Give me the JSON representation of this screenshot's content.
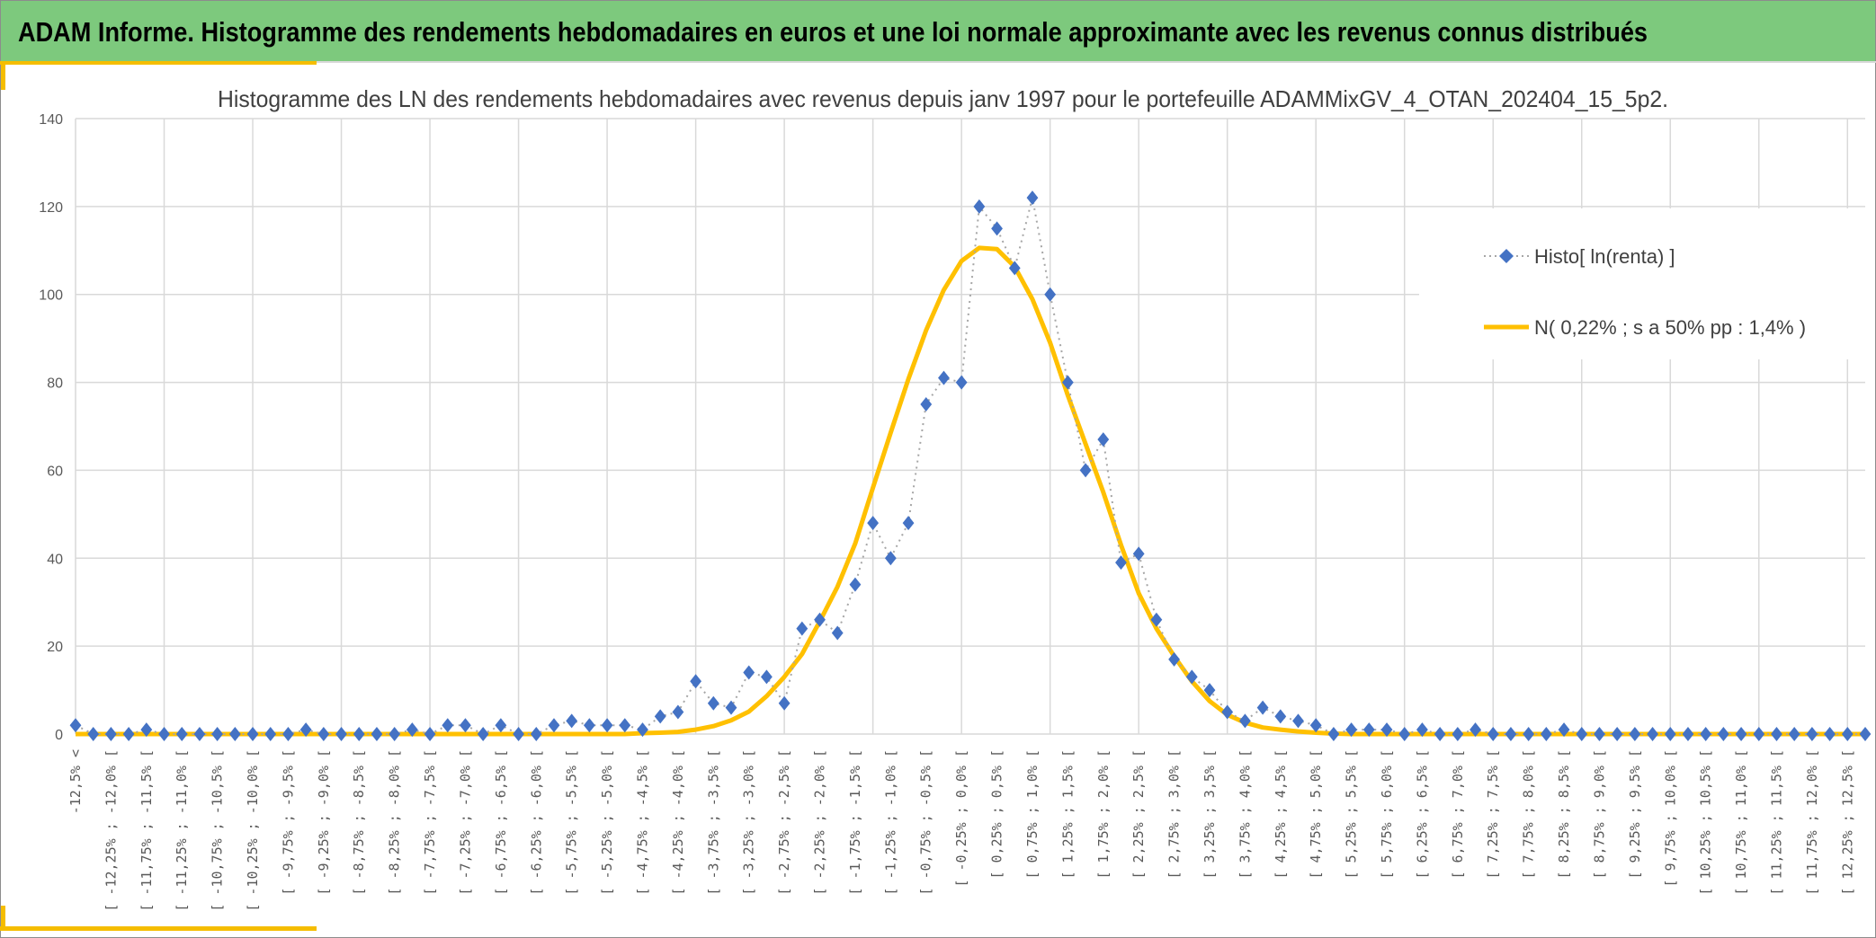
{
  "header": {
    "title": "ADAM Informe. Histogramme des rendements hebdomadaires en euros et une loi normale approximante avec les revenus connus distribués"
  },
  "colors": {
    "header_bg": "#7dc97d",
    "accent": "#f5bd00",
    "histo": "#4472c4",
    "normal": "#ffc000",
    "grid": "#d9d9d9"
  },
  "chart_data": {
    "type": "line",
    "title": "Histogramme des LN des rendements hebdomadaires avec revenus depuis janv 1997 pour le portefeuille ADAMMixGV_4_OTAN_202404_15_5p2.",
    "xlabel": "",
    "ylabel": "",
    "ylim": [
      0,
      140
    ],
    "y_ticks": [
      "0",
      "20",
      "40",
      "60",
      "80",
      "100",
      "120",
      "140"
    ],
    "grid": true,
    "legend_position": "right",
    "bin_width_pct": 0.25,
    "tick_labels_every": 2,
    "tick_labels": [
      "-12,5% <",
      "[ -12,25% ; -12,0% [",
      "[ -11,75% ; -11,5% [",
      "[ -11,25% ; -11,0% [",
      "[ -10,75% ; -10,5% [",
      "[ -10,25% ; -10,0% [",
      "[ -9,75% ; -9,5% [",
      "[ -9,25% ; -9,0% [",
      "[ -8,75% ; -8,5% [",
      "[ -8,25% ; -8,0% [",
      "[ -7,75% ; -7,5% [",
      "[ -7,25% ; -7,0% [",
      "[ -6,75% ; -6,5% [",
      "[ -6,25% ; -6,0% [",
      "[ -5,75% ; -5,5% [",
      "[ -5,25% ; -5,0% [",
      "[ -4,75% ; -4,5% [",
      "[ -4,25% ; -4,0% [",
      "[ -3,75% ; -3,5% [",
      "[ -3,25% ; -3,0% [",
      "[ -2,75% ; -2,5% [",
      "[ -2,25% ; -2,0% [",
      "[ -1,75% ; -1,5% [",
      "[ -1,25% ; -1,0% [",
      "[ -0,75% ; -0,5% [",
      "[ -0,25% ; 0,0% [",
      "[ 0,25% ; 0,5% [",
      "[ 0,75% ; 1,0% [",
      "[ 1,25% ; 1,5% [",
      "[ 1,75% ; 2,0% [",
      "[ 2,25% ; 2,5% [",
      "[ 2,75% ; 3,0% [",
      "[ 3,25% ; 3,5% [",
      "[ 3,75% ; 4,0% [",
      "[ 4,25% ; 4,5% [",
      "[ 4,75% ; 5,0% [",
      "[ 5,25% ; 5,5% [",
      "[ 5,75% ; 6,0% [",
      "[ 6,25% ; 6,5% [",
      "[ 6,75% ; 7,0% [",
      "[ 7,25% ; 7,5% [",
      "[ 7,75% ; 8,0% [",
      "[ 8,25% ; 8,5% [",
      "[ 8,75% ; 9,0% [",
      "[ 9,25% ; 9,5% [",
      "[ 9,75% ; 10,0% [",
      "[ 10,25% ; 10,5% [",
      "[ 10,75% ; 11,0% [",
      "[ 11,25% ; 11,5% [",
      "[ 11,75% ; 12,0% [",
      "[ 12,25% ; 12,5% ["
    ],
    "series": [
      {
        "name": "Histo[ ln(renta) ]",
        "style": "dotted-diamond",
        "values": [
          2,
          0,
          0,
          0,
          1,
          0,
          0,
          0,
          0,
          0,
          0,
          0,
          0,
          1,
          0,
          0,
          0,
          0,
          0,
          1,
          0,
          2,
          2,
          0,
          2,
          0,
          0,
          2,
          3,
          2,
          2,
          2,
          1,
          4,
          5,
          12,
          7,
          6,
          14,
          13,
          7,
          24,
          26,
          23,
          34,
          48,
          40,
          48,
          75,
          81,
          80,
          120,
          115,
          106,
          122,
          100,
          80,
          60,
          67,
          39,
          41,
          26,
          17,
          13,
          10,
          5,
          3,
          6,
          4,
          3,
          2,
          0,
          1,
          1,
          1,
          0,
          1,
          0,
          0,
          1,
          0,
          0,
          0,
          0,
          1,
          0,
          0,
          0,
          0,
          0,
          0,
          0,
          0,
          0,
          0,
          0,
          0,
          0,
          0,
          0,
          0,
          0
        ]
      },
      {
        "name": "N( 0,22% ; s a 50% pp : 1,4% )",
        "style": "solid",
        "values": [
          0,
          0,
          0,
          0,
          0,
          0,
          0,
          0,
          0,
          0,
          0,
          0,
          0,
          0,
          0,
          0,
          0,
          0,
          0,
          0,
          0,
          0,
          0,
          0,
          0,
          0,
          0,
          0,
          0,
          0,
          0,
          0,
          0.2,
          0.3,
          0.5,
          1.0,
          1.8,
          3.1,
          5.1,
          8.6,
          13,
          18.2,
          25.6,
          33.5,
          43.3,
          56,
          68.5,
          80.7,
          91.8,
          101,
          107.6,
          110.6,
          110.3,
          106.3,
          98.9,
          89,
          77,
          66,
          55,
          43,
          32,
          24,
          17.7,
          12,
          7.5,
          4.4,
          2.6,
          1.5,
          1.0,
          0.6,
          0.3,
          0.1,
          0,
          0,
          0,
          0,
          0,
          0,
          0,
          0,
          0,
          0,
          0,
          0,
          0,
          0,
          0,
          0,
          0,
          0,
          0,
          0,
          0,
          0,
          0,
          0,
          0,
          0,
          0,
          0,
          0,
          0
        ]
      }
    ]
  }
}
